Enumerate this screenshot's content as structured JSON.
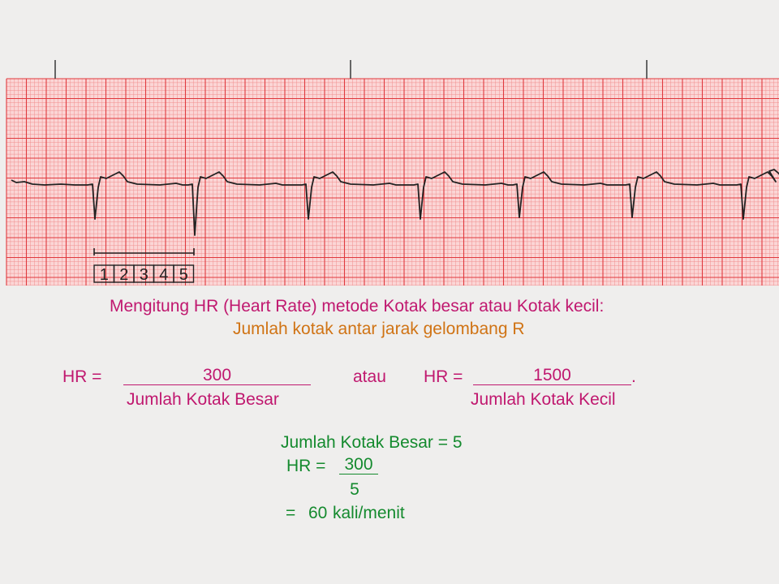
{
  "colors": {
    "background": "#efeeed",
    "grid_fill": "#fbd6d6",
    "grid_minor": "#f08e8e",
    "grid_major": "#e0393e",
    "trace": "#222222",
    "title": "#c0186f",
    "subtitle": "#d07314",
    "example": "#148a2e"
  },
  "ecg": {
    "box_labels": [
      "1",
      "2",
      "3",
      "4",
      "5"
    ]
  },
  "title": "Mengitung HR (Heart Rate) metode Kotak besar atau Kotak kecil:",
  "subtitle": "Jumlah kotak  antar jarak gelombang R",
  "formula_left": {
    "label": "HR =",
    "numerator": "300",
    "denominator": "Jumlah Kotak Besar"
  },
  "connector": "atau",
  "formula_right": {
    "label": "HR =",
    "numerator": "1500",
    "trailing": ".",
    "denominator": "Jumlah Kotak Kecil"
  },
  "example": {
    "given": "Jumlah Kotak Besar = 5",
    "label": "HR =",
    "numerator": "300",
    "denominator": "5",
    "equals": "=",
    "value": "60",
    "unit": "kali/menit"
  }
}
